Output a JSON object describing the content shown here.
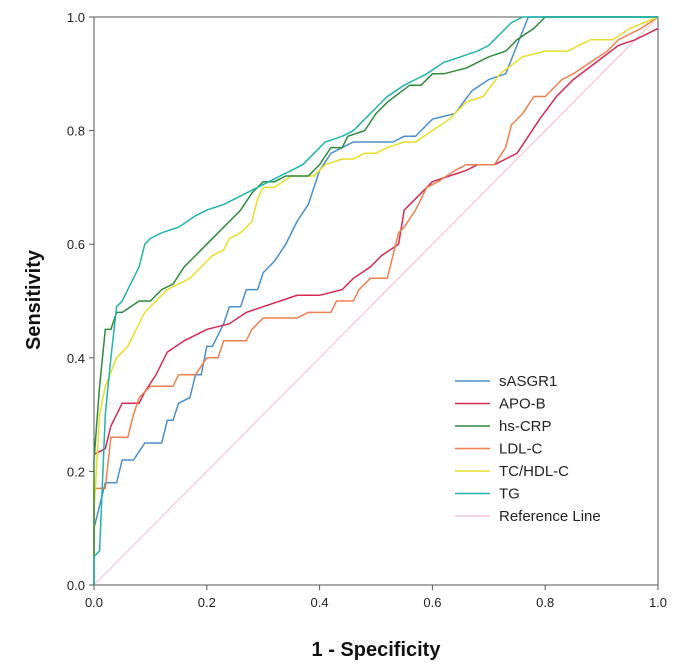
{
  "chart_data": {
    "type": "line",
    "title": "",
    "xlabel": "1 - Specificity",
    "ylabel": "Sensitivity",
    "xlim": [
      0,
      1
    ],
    "ylim": [
      0,
      1
    ],
    "x_ticks": [
      "0.0",
      "0.2",
      "0.4",
      "0.6",
      "0.8",
      "1.0"
    ],
    "y_ticks": [
      "0.0",
      "0.2",
      "0.4",
      "0.6",
      "0.8",
      "1.0"
    ],
    "legend_position": "bottom-right",
    "series": [
      {
        "name": "sASGR1",
        "color": "#4a90c8",
        "points": [
          [
            0,
            0
          ],
          [
            0,
            0.1
          ],
          [
            0.02,
            0.18
          ],
          [
            0.04,
            0.18
          ],
          [
            0.05,
            0.22
          ],
          [
            0.07,
            0.22
          ],
          [
            0.09,
            0.25
          ],
          [
            0.12,
            0.25
          ],
          [
            0.13,
            0.29
          ],
          [
            0.14,
            0.29
          ],
          [
            0.15,
            0.32
          ],
          [
            0.17,
            0.33
          ],
          [
            0.18,
            0.37
          ],
          [
            0.19,
            0.37
          ],
          [
            0.2,
            0.42
          ],
          [
            0.21,
            0.42
          ],
          [
            0.23,
            0.46
          ],
          [
            0.24,
            0.49
          ],
          [
            0.26,
            0.49
          ],
          [
            0.27,
            0.52
          ],
          [
            0.29,
            0.52
          ],
          [
            0.3,
            0.55
          ],
          [
            0.32,
            0.57
          ],
          [
            0.34,
            0.6
          ],
          [
            0.36,
            0.64
          ],
          [
            0.38,
            0.67
          ],
          [
            0.39,
            0.7
          ],
          [
            0.4,
            0.73
          ],
          [
            0.42,
            0.76
          ],
          [
            0.44,
            0.77
          ],
          [
            0.46,
            0.78
          ],
          [
            0.48,
            0.78
          ],
          [
            0.51,
            0.78
          ],
          [
            0.53,
            0.78
          ],
          [
            0.55,
            0.79
          ],
          [
            0.57,
            0.79
          ],
          [
            0.6,
            0.82
          ],
          [
            0.64,
            0.83
          ],
          [
            0.67,
            0.87
          ],
          [
            0.7,
            0.89
          ],
          [
            0.73,
            0.9
          ],
          [
            0.75,
            0.95
          ],
          [
            0.77,
            1.0
          ],
          [
            0.85,
            1.0
          ],
          [
            1.0,
            1.0
          ]
        ]
      },
      {
        "name": "APO-B",
        "color": "#d12a55",
        "points": [
          [
            0,
            0.23
          ],
          [
            0.02,
            0.24
          ],
          [
            0.03,
            0.28
          ],
          [
            0.04,
            0.3
          ],
          [
            0.05,
            0.32
          ],
          [
            0.08,
            0.32
          ],
          [
            0.09,
            0.34
          ],
          [
            0.11,
            0.37
          ],
          [
            0.13,
            0.41
          ],
          [
            0.16,
            0.43
          ],
          [
            0.2,
            0.45
          ],
          [
            0.24,
            0.46
          ],
          [
            0.27,
            0.48
          ],
          [
            0.3,
            0.49
          ],
          [
            0.33,
            0.5
          ],
          [
            0.36,
            0.51
          ],
          [
            0.4,
            0.51
          ],
          [
            0.44,
            0.52
          ],
          [
            0.46,
            0.54
          ],
          [
            0.49,
            0.56
          ],
          [
            0.51,
            0.58
          ],
          [
            0.54,
            0.6
          ],
          [
            0.55,
            0.66
          ],
          [
            0.57,
            0.68
          ],
          [
            0.6,
            0.71
          ],
          [
            0.63,
            0.72
          ],
          [
            0.66,
            0.73
          ],
          [
            0.68,
            0.74
          ],
          [
            0.71,
            0.74
          ],
          [
            0.73,
            0.75
          ],
          [
            0.75,
            0.76
          ],
          [
            0.77,
            0.79
          ],
          [
            0.79,
            0.82
          ],
          [
            0.82,
            0.86
          ],
          [
            0.85,
            0.89
          ],
          [
            0.89,
            0.92
          ],
          [
            0.93,
            0.95
          ],
          [
            0.96,
            0.96
          ],
          [
            1.0,
            0.98
          ]
        ]
      },
      {
        "name": "hs-CRP",
        "color": "#2e8b3e",
        "points": [
          [
            0,
            0
          ],
          [
            0,
            0.22
          ],
          [
            0.01,
            0.35
          ],
          [
            0.02,
            0.45
          ],
          [
            0.03,
            0.45
          ],
          [
            0.04,
            0.48
          ],
          [
            0.05,
            0.48
          ],
          [
            0.08,
            0.5
          ],
          [
            0.1,
            0.5
          ],
          [
            0.12,
            0.52
          ],
          [
            0.14,
            0.53
          ],
          [
            0.16,
            0.56
          ],
          [
            0.18,
            0.58
          ],
          [
            0.2,
            0.6
          ],
          [
            0.22,
            0.62
          ],
          [
            0.24,
            0.64
          ],
          [
            0.26,
            0.66
          ],
          [
            0.28,
            0.69
          ],
          [
            0.3,
            0.71
          ],
          [
            0.32,
            0.71
          ],
          [
            0.34,
            0.72
          ],
          [
            0.36,
            0.72
          ],
          [
            0.38,
            0.72
          ],
          [
            0.4,
            0.74
          ],
          [
            0.42,
            0.77
          ],
          [
            0.44,
            0.77
          ],
          [
            0.45,
            0.79
          ],
          [
            0.48,
            0.8
          ],
          [
            0.5,
            0.83
          ],
          [
            0.52,
            0.85
          ],
          [
            0.56,
            0.88
          ],
          [
            0.58,
            0.88
          ],
          [
            0.6,
            0.9
          ],
          [
            0.62,
            0.9
          ],
          [
            0.66,
            0.91
          ],
          [
            0.7,
            0.93
          ],
          [
            0.73,
            0.94
          ],
          [
            0.75,
            0.96
          ],
          [
            0.78,
            0.98
          ],
          [
            0.8,
            1.0
          ],
          [
            1.0,
            1.0
          ]
        ]
      },
      {
        "name": "LDL-C",
        "color": "#f07f4f",
        "points": [
          [
            0,
            0
          ],
          [
            0,
            0.17
          ],
          [
            0.02,
            0.17
          ],
          [
            0.03,
            0.26
          ],
          [
            0.06,
            0.26
          ],
          [
            0.07,
            0.3
          ],
          [
            0.08,
            0.33
          ],
          [
            0.1,
            0.35
          ],
          [
            0.14,
            0.35
          ],
          [
            0.15,
            0.37
          ],
          [
            0.18,
            0.37
          ],
          [
            0.2,
            0.4
          ],
          [
            0.22,
            0.4
          ],
          [
            0.23,
            0.43
          ],
          [
            0.27,
            0.43
          ],
          [
            0.28,
            0.45
          ],
          [
            0.3,
            0.47
          ],
          [
            0.36,
            0.47
          ],
          [
            0.38,
            0.48
          ],
          [
            0.42,
            0.48
          ],
          [
            0.43,
            0.5
          ],
          [
            0.46,
            0.5
          ],
          [
            0.47,
            0.52
          ],
          [
            0.49,
            0.54
          ],
          [
            0.52,
            0.54
          ],
          [
            0.53,
            0.58
          ],
          [
            0.54,
            0.62
          ],
          [
            0.55,
            0.63
          ],
          [
            0.57,
            0.66
          ],
          [
            0.59,
            0.7
          ],
          [
            0.61,
            0.71
          ],
          [
            0.64,
            0.73
          ],
          [
            0.66,
            0.74
          ],
          [
            0.69,
            0.74
          ],
          [
            0.71,
            0.74
          ],
          [
            0.73,
            0.77
          ],
          [
            0.74,
            0.81
          ],
          [
            0.76,
            0.83
          ],
          [
            0.78,
            0.86
          ],
          [
            0.8,
            0.86
          ],
          [
            0.83,
            0.89
          ],
          [
            0.85,
            0.9
          ],
          [
            0.88,
            0.92
          ],
          [
            0.91,
            0.94
          ],
          [
            0.93,
            0.96
          ],
          [
            0.97,
            0.98
          ],
          [
            1.0,
            1.0
          ]
        ]
      },
      {
        "name": "TC/HDL-C",
        "color": "#e6de2a",
        "points": [
          [
            0,
            0
          ],
          [
            0,
            0.13
          ],
          [
            0.01,
            0.3
          ],
          [
            0.02,
            0.35
          ],
          [
            0.04,
            0.4
          ],
          [
            0.06,
            0.42
          ],
          [
            0.07,
            0.44
          ],
          [
            0.08,
            0.46
          ],
          [
            0.09,
            0.48
          ],
          [
            0.11,
            0.5
          ],
          [
            0.13,
            0.52
          ],
          [
            0.15,
            0.53
          ],
          [
            0.17,
            0.54
          ],
          [
            0.19,
            0.56
          ],
          [
            0.21,
            0.58
          ],
          [
            0.23,
            0.59
          ],
          [
            0.24,
            0.61
          ],
          [
            0.26,
            0.62
          ],
          [
            0.28,
            0.64
          ],
          [
            0.29,
            0.68
          ],
          [
            0.3,
            0.7
          ],
          [
            0.32,
            0.7
          ],
          [
            0.35,
            0.72
          ],
          [
            0.37,
            0.72
          ],
          [
            0.39,
            0.72
          ],
          [
            0.41,
            0.74
          ],
          [
            0.44,
            0.75
          ],
          [
            0.46,
            0.75
          ],
          [
            0.48,
            0.76
          ],
          [
            0.5,
            0.76
          ],
          [
            0.52,
            0.77
          ],
          [
            0.55,
            0.78
          ],
          [
            0.57,
            0.78
          ],
          [
            0.6,
            0.8
          ],
          [
            0.63,
            0.82
          ],
          [
            0.66,
            0.85
          ],
          [
            0.69,
            0.86
          ],
          [
            0.72,
            0.9
          ],
          [
            0.76,
            0.93
          ],
          [
            0.8,
            0.94
          ],
          [
            0.84,
            0.94
          ],
          [
            0.88,
            0.96
          ],
          [
            0.92,
            0.96
          ],
          [
            0.95,
            0.98
          ],
          [
            1.0,
            1.0
          ]
        ]
      },
      {
        "name": "TG",
        "color": "#1fb5a8",
        "points": [
          [
            0,
            0
          ],
          [
            0,
            0.05
          ],
          [
            0.01,
            0.06
          ],
          [
            0.02,
            0.3
          ],
          [
            0.03,
            0.4
          ],
          [
            0.04,
            0.49
          ],
          [
            0.05,
            0.5
          ],
          [
            0.06,
            0.52
          ],
          [
            0.08,
            0.56
          ],
          [
            0.09,
            0.6
          ],
          [
            0.1,
            0.61
          ],
          [
            0.12,
            0.62
          ],
          [
            0.15,
            0.63
          ],
          [
            0.18,
            0.65
          ],
          [
            0.2,
            0.66
          ],
          [
            0.23,
            0.67
          ],
          [
            0.25,
            0.68
          ],
          [
            0.27,
            0.69
          ],
          [
            0.29,
            0.7
          ],
          [
            0.31,
            0.71
          ],
          [
            0.33,
            0.72
          ],
          [
            0.35,
            0.73
          ],
          [
            0.37,
            0.74
          ],
          [
            0.39,
            0.76
          ],
          [
            0.41,
            0.78
          ],
          [
            0.44,
            0.79
          ],
          [
            0.46,
            0.8
          ],
          [
            0.48,
            0.82
          ],
          [
            0.5,
            0.84
          ],
          [
            0.52,
            0.86
          ],
          [
            0.55,
            0.88
          ],
          [
            0.57,
            0.89
          ],
          [
            0.59,
            0.9
          ],
          [
            0.62,
            0.92
          ],
          [
            0.65,
            0.93
          ],
          [
            0.68,
            0.94
          ],
          [
            0.7,
            0.95
          ],
          [
            0.72,
            0.97
          ],
          [
            0.74,
            0.99
          ],
          [
            0.76,
            1.0
          ],
          [
            1.0,
            1.0
          ]
        ]
      },
      {
        "name": "Reference Line",
        "color": "#f5c6d3",
        "points": [
          [
            0,
            0
          ],
          [
            1,
            1
          ]
        ]
      }
    ]
  }
}
